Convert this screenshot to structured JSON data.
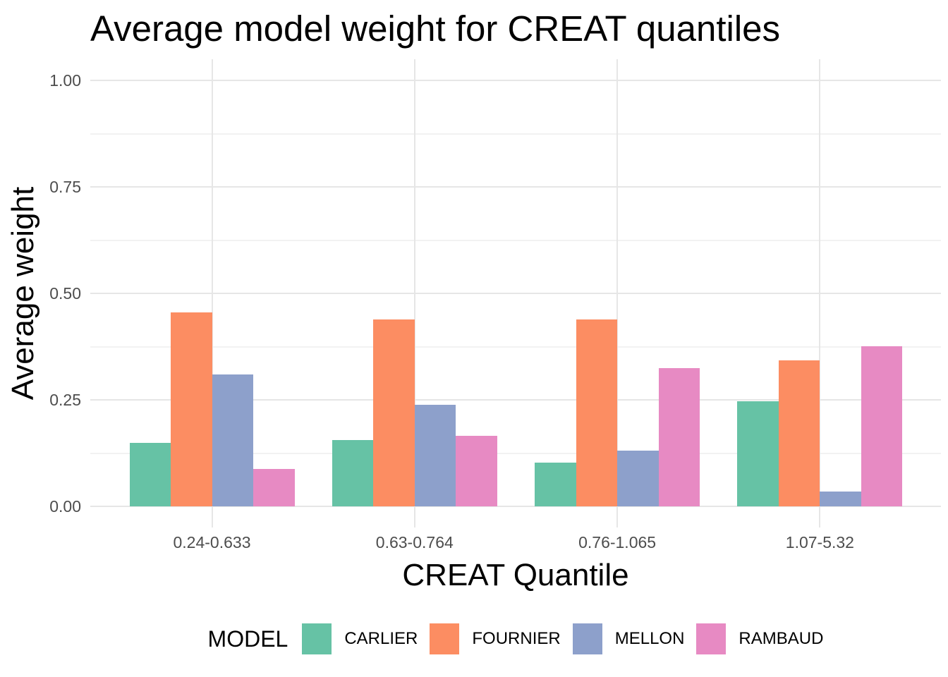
{
  "chart_data": {
    "type": "bar",
    "title": "Average model weight for CREAT quantiles",
    "xlabel": "CREAT Quantile",
    "ylabel": "Average weight",
    "categories": [
      "0.24-0.633",
      "0.63-0.764",
      "0.76-1.065",
      "1.07-5.32"
    ],
    "series": [
      {
        "name": "CARLIER",
        "color": "#66C2A5",
        "values": [
          0.149,
          0.155,
          0.102,
          0.246
        ]
      },
      {
        "name": "FOURNIER",
        "color": "#FC8D62",
        "values": [
          0.455,
          0.439,
          0.439,
          0.343
        ]
      },
      {
        "name": "MELLON",
        "color": "#8DA0CB",
        "values": [
          0.31,
          0.238,
          0.131,
          0.034
        ]
      },
      {
        "name": "RAMBAUD",
        "color": "#E78AC3",
        "values": [
          0.087,
          0.166,
          0.325,
          0.376
        ]
      }
    ],
    "ylim": [
      0,
      1
    ],
    "yticks": [
      "0.00",
      "0.25",
      "0.50",
      "0.75",
      "1.00"
    ],
    "ytick_values": [
      0,
      0.25,
      0.5,
      0.75,
      1.0
    ],
    "yminor_values": [
      0.125,
      0.375,
      0.625,
      0.875
    ],
    "grid": true,
    "legend_position": "bottom",
    "legend_title": "MODEL"
  },
  "style": {
    "background": "#FFFFFF",
    "tick_label_color": "#4D4D4D",
    "grid_major_color": "#E6E6E6",
    "grid_minor_color": "#F2F2F2",
    "text_color": "#000000"
  }
}
